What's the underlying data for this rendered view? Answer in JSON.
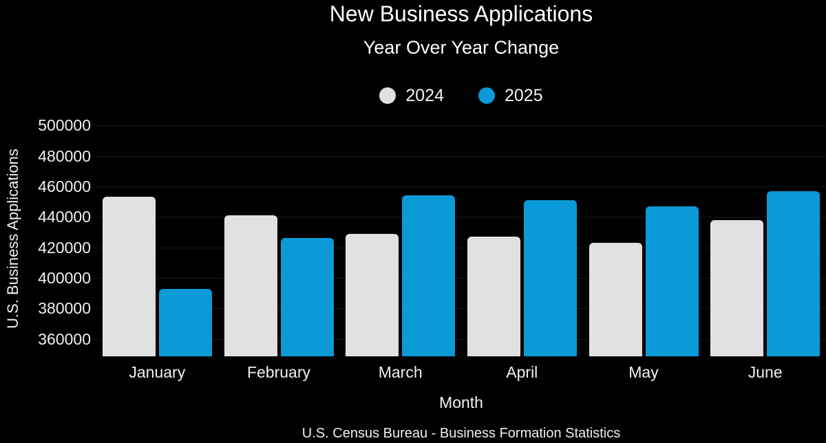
{
  "title": "New Business Applications",
  "subtitle": "Year Over Year Change",
  "legend": {
    "items": [
      {
        "label": "2024",
        "color": "#e1e1e1"
      },
      {
        "label": "2025",
        "color": "#0a9ad7"
      }
    ]
  },
  "chart_data": {
    "type": "bar",
    "title": "New Business Applications",
    "subtitle": "Year Over Year Change",
    "categories": [
      "January",
      "February",
      "March",
      "April",
      "May",
      "June"
    ],
    "series": [
      {
        "name": "2024",
        "color": "#e1e1e1",
        "values": [
          453000,
          441000,
          429000,
          427000,
          423000,
          438000
        ]
      },
      {
        "name": "2025",
        "color": "#0a9ad7",
        "values": [
          393000,
          426000,
          454000,
          451000,
          447000,
          457000
        ]
      }
    ],
    "xlabel": "Month",
    "ylabel": "U.S. Business Applications",
    "yticks": [
      360000,
      380000,
      400000,
      420000,
      440000,
      460000,
      480000,
      500000
    ],
    "ylim": [
      348600,
      505500
    ],
    "grid": true,
    "legend_position": "top-center",
    "source": "U.S. Census Bureau - Business Formation Statistics"
  },
  "colors": {
    "background": "#000000",
    "gridline": "#171717",
    "text": "#ffffff"
  }
}
